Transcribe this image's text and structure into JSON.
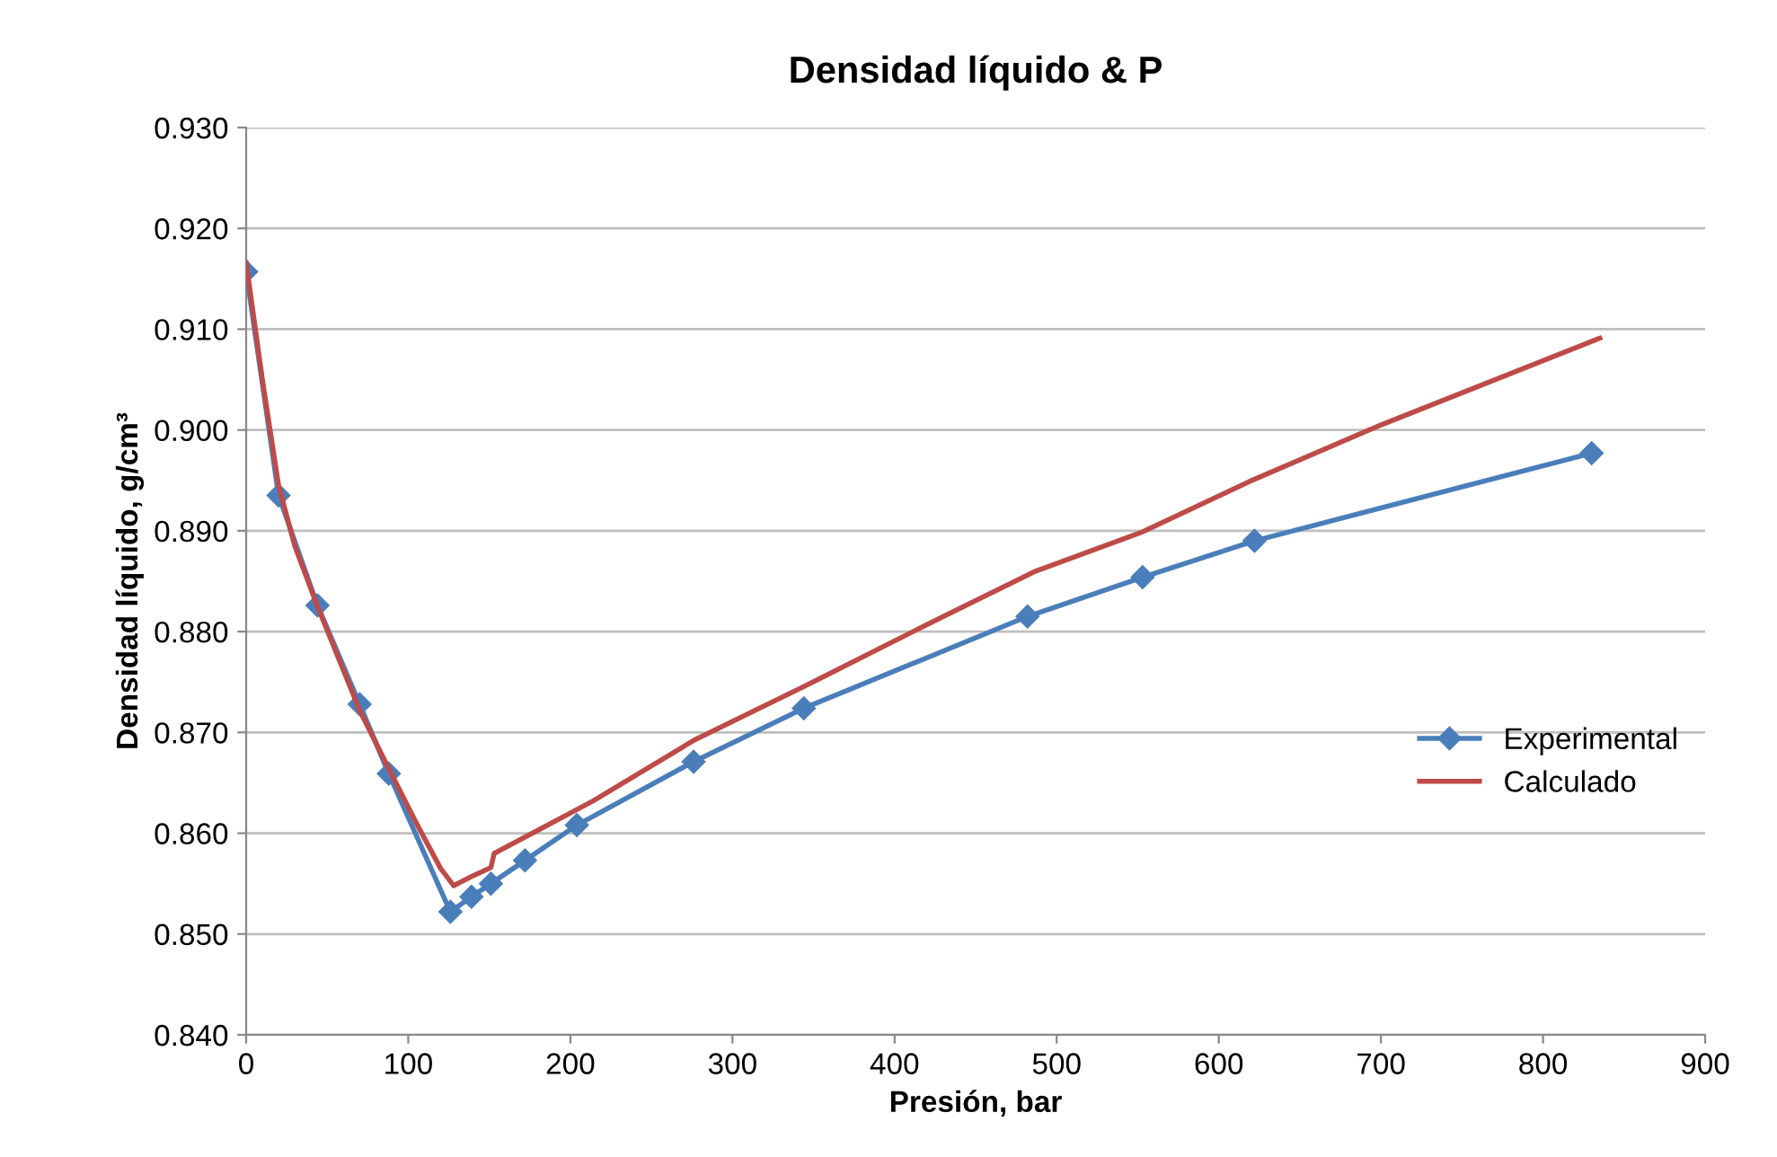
{
  "chart_data": {
    "type": "line",
    "title": "Densidad líquido & P",
    "xlabel": "Presión, bar",
    "ylabel": "Densidad líquido, g/cm³",
    "xlim": [
      0,
      900
    ],
    "xticks": [
      0,
      100,
      200,
      300,
      400,
      500,
      600,
      700,
      800,
      900
    ],
    "ylim": [
      0.84,
      0.93
    ],
    "yticks": [
      {
        "value": 0.84,
        "label": "0.840"
      },
      {
        "value": 0.85,
        "label": "0.850"
      },
      {
        "value": 0.86,
        "label": "0.860"
      },
      {
        "value": 0.87,
        "label": "0.870"
      },
      {
        "value": 0.88,
        "label": "0.880"
      },
      {
        "value": 0.89,
        "label": "0.890"
      },
      {
        "value": 0.9,
        "label": "0.900"
      },
      {
        "value": 0.91,
        "label": "0.910"
      },
      {
        "value": 0.92,
        "label": "0.920"
      },
      {
        "value": 0.93,
        "label": "0.930"
      }
    ],
    "grid": "y",
    "legend": "right",
    "series": [
      {
        "name": "Experimental",
        "color": "#4a7ebb",
        "marker": "diamond",
        "x": [
          0,
          20,
          44,
          70,
          88,
          126,
          139,
          151,
          172,
          204,
          276,
          344,
          482,
          553,
          622,
          830
        ],
        "values": [
          0.9157,
          0.8935,
          0.8826,
          0.8728,
          0.8659,
          0.8522,
          0.8537,
          0.855,
          0.8573,
          0.8608,
          0.8671,
          0.8724,
          0.8815,
          0.8854,
          0.889,
          0.8977
        ]
      },
      {
        "name": "Calculado",
        "color": "#be4b48",
        "marker": "none",
        "x": [
          0,
          10,
          20,
          30,
          44,
          70,
          88,
          105,
          120,
          128,
          139,
          151,
          153,
          180,
          214,
          276,
          346,
          420,
          487,
          553,
          619,
          700,
          835
        ],
        "values": [
          0.9166,
          0.905,
          0.8945,
          0.8885,
          0.8825,
          0.8722,
          0.8664,
          0.861,
          0.8565,
          0.8548,
          0.8557,
          0.8566,
          0.858,
          0.8603,
          0.8632,
          0.8692,
          0.8747,
          0.8807,
          0.886,
          0.8899,
          0.8949,
          0.9005,
          0.9091
        ]
      }
    ]
  }
}
